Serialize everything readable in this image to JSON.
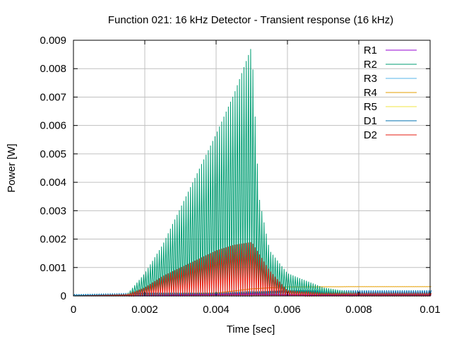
{
  "chart_data": {
    "type": "line",
    "title": "Function 021: 16 kHz Detector - Transient response (16 kHz)",
    "xlabel": "Time [sec]",
    "ylabel": "Power [W]",
    "xlim": [
      0,
      0.01
    ],
    "ylim": [
      0,
      0.009
    ],
    "x_ticks": [
      "0",
      "0.002",
      "0.004",
      "0.006",
      "0.008",
      "0.01"
    ],
    "y_ticks": [
      "0",
      "0.001",
      "0.002",
      "0.003",
      "0.004",
      "0.005",
      "0.006",
      "0.007",
      "0.008",
      "0.009"
    ],
    "grid": true,
    "legend_position": "top-right",
    "series": [
      {
        "name": "R1",
        "color": "#9400d3",
        "x": [
          0,
          0.001,
          0.002,
          0.003,
          0.004,
          0.005,
          0.006,
          0.007,
          0.008,
          0.009,
          0.01
        ],
        "y": [
          0,
          0,
          2e-05,
          4e-05,
          6e-05,
          8e-05,
          5e-05,
          4e-05,
          4e-05,
          4e-05,
          4e-05
        ]
      },
      {
        "name": "R2",
        "color": "#009e73",
        "x": [
          0,
          0.0015,
          0.002,
          0.0025,
          0.003,
          0.0035,
          0.004,
          0.0045,
          0.005,
          0.0052,
          0.0055,
          0.006,
          0.007,
          0.008,
          0.01
        ],
        "y": [
          0,
          5e-05,
          0.0008,
          0.0018,
          0.0031,
          0.0044,
          0.0057,
          0.0071,
          0.0088,
          0.0035,
          0.0016,
          0.0008,
          0.0003,
          0.0001,
          0.0001
        ]
      },
      {
        "name": "R3",
        "color": "#56b4e9",
        "x": [
          0,
          0.002,
          0.004,
          0.006,
          0.008,
          0.01
        ],
        "y": [
          0,
          1e-05,
          2e-05,
          2e-05,
          2e-05,
          2e-05
        ]
      },
      {
        "name": "R4",
        "color": "#e69f00",
        "x": [
          0,
          0.002,
          0.004,
          0.005,
          0.006,
          0.008,
          0.01
        ],
        "y": [
          0,
          5e-05,
          0.0001,
          0.00025,
          0.00032,
          0.00033,
          0.00033
        ]
      },
      {
        "name": "R5",
        "color": "#f0e442",
        "x": [
          0,
          0.002,
          0.004,
          0.006,
          0.008,
          0.01
        ],
        "y": [
          0,
          1e-05,
          2e-05,
          2e-05,
          2e-05,
          2e-05
        ]
      },
      {
        "name": "D1",
        "color": "#0072b2",
        "x": [
          0,
          0.002,
          0.004,
          0.005,
          0.006,
          0.007,
          0.008,
          0.009,
          0.01
        ],
        "y": [
          5e-05,
          0.0001,
          0.0001,
          0.00015,
          0.0002,
          0.0002,
          0.0002,
          0.0002,
          0.0002
        ]
      },
      {
        "name": "D2",
        "color": "#e51e10",
        "x": [
          0,
          0.0015,
          0.002,
          0.0025,
          0.003,
          0.0035,
          0.004,
          0.0045,
          0.005,
          0.0055,
          0.006,
          0.007,
          0.008,
          0.01
        ],
        "y": [
          0,
          5e-05,
          0.0003,
          0.0007,
          0.001,
          0.0013,
          0.0016,
          0.0018,
          0.0019,
          0.0009,
          0.0002,
          0.0001,
          0.0001,
          0.0001
        ]
      }
    ]
  }
}
